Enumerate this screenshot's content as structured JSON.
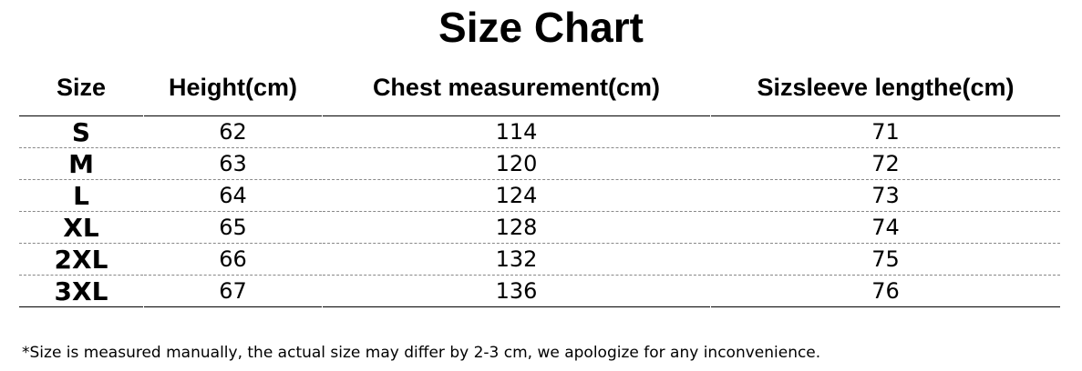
{
  "chart_data": {
    "type": "table",
    "title": "Size Chart",
    "columns": [
      "Size",
      "Height(cm)",
      "Chest measurement(cm)",
      "Sizsleeve lengthe(cm)"
    ],
    "rows": [
      [
        "S",
        "62",
        "114",
        "71"
      ],
      [
        "M",
        "63",
        "120",
        "72"
      ],
      [
        "L",
        "64",
        "124",
        "73"
      ],
      [
        "XL",
        "65",
        "128",
        "74"
      ],
      [
        "2XL",
        "66",
        "132",
        "75"
      ],
      [
        "3XL",
        "67",
        "136",
        "76"
      ]
    ],
    "note": "*Size is measured manually, the actual size may differ by 2-3 cm, we apologize for any inconvenience."
  }
}
